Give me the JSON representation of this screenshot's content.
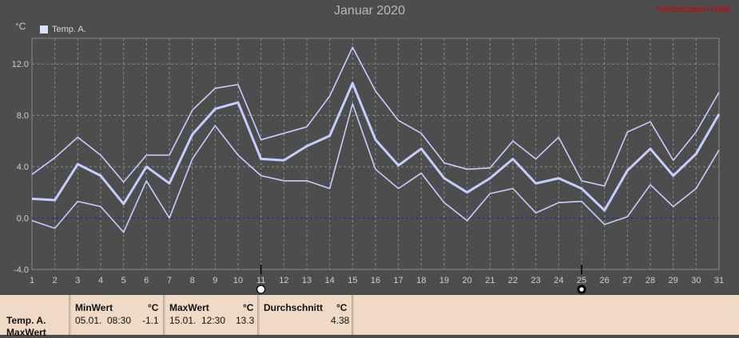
{
  "title": "Januar 2020",
  "brand": "Wetterstation Halle",
  "unit": "°C",
  "legend": {
    "label": "Temp. A.",
    "color": "#d8e2ff"
  },
  "colors": {
    "background": "#4d4d4d",
    "grid": "#8a8a8a",
    "line": "#c4cfff",
    "zero": "#2222aa"
  },
  "chart_data": {
    "type": "line",
    "title": "Januar 2020",
    "ylabel": "°C",
    "x": [
      1,
      2,
      3,
      4,
      5,
      6,
      7,
      8,
      9,
      10,
      11,
      12,
      13,
      14,
      15,
      16,
      17,
      18,
      19,
      20,
      21,
      22,
      23,
      24,
      25,
      26,
      27,
      28,
      29,
      30,
      31
    ],
    "ylim": [
      -4.0,
      14.0
    ],
    "yticks": [
      "-4.0",
      "0.0",
      "4.0",
      "8.0",
      "12.0"
    ],
    "grid": true,
    "legend_placement": "top-left",
    "series": [
      {
        "name": "Temp. A.",
        "role": "max",
        "values": [
          3.4,
          4.7,
          6.3,
          4.9,
          2.8,
          4.9,
          4.9,
          8.4,
          10.1,
          10.4,
          6.1,
          6.6,
          7.1,
          9.5,
          13.3,
          9.9,
          7.6,
          6.6,
          4.3,
          3.8,
          3.9,
          6.0,
          4.6,
          6.3,
          2.9,
          2.5,
          6.7,
          7.5,
          4.5,
          6.7,
          9.8
        ]
      },
      {
        "name": "Temp. A.",
        "role": "avg",
        "values": [
          1.5,
          1.4,
          4.2,
          3.3,
          1.1,
          4.0,
          2.7,
          6.5,
          8.5,
          9.0,
          4.6,
          4.5,
          5.6,
          6.4,
          10.5,
          6.1,
          4.1,
          5.4,
          3.1,
          2.0,
          3.1,
          4.6,
          2.7,
          3.1,
          2.3,
          0.6,
          3.7,
          5.4,
          3.3,
          5.0,
          8.1
        ]
      },
      {
        "name": "Temp. A.",
        "role": "min",
        "values": [
          -0.2,
          -0.8,
          1.3,
          0.9,
          -1.1,
          2.9,
          0.0,
          4.6,
          7.2,
          4.9,
          3.3,
          2.9,
          2.9,
          2.3,
          8.9,
          3.8,
          2.3,
          3.5,
          1.2,
          -0.2,
          1.9,
          2.3,
          0.4,
          1.2,
          1.3,
          -0.5,
          0.1,
          2.6,
          0.9,
          2.3,
          5.3
        ]
      }
    ],
    "markers": [
      {
        "x": 11,
        "symbol": "full-moon"
      },
      {
        "x": 25,
        "symbol": "new-moon"
      }
    ]
  },
  "stats": {
    "row_label_1": "Temp. A.",
    "row_label_2": "MaxWert",
    "min": {
      "header": "MinWert",
      "unit": "°C",
      "date": "05.01.",
      "time": "08:30",
      "value": "-1.1"
    },
    "max": {
      "header": "MaxWert",
      "unit": "°C",
      "date": "15.01.",
      "time": "12:30",
      "value": "13.3"
    },
    "avg": {
      "header": "Durchschnitt",
      "unit": "°C",
      "value": "4.38"
    }
  }
}
